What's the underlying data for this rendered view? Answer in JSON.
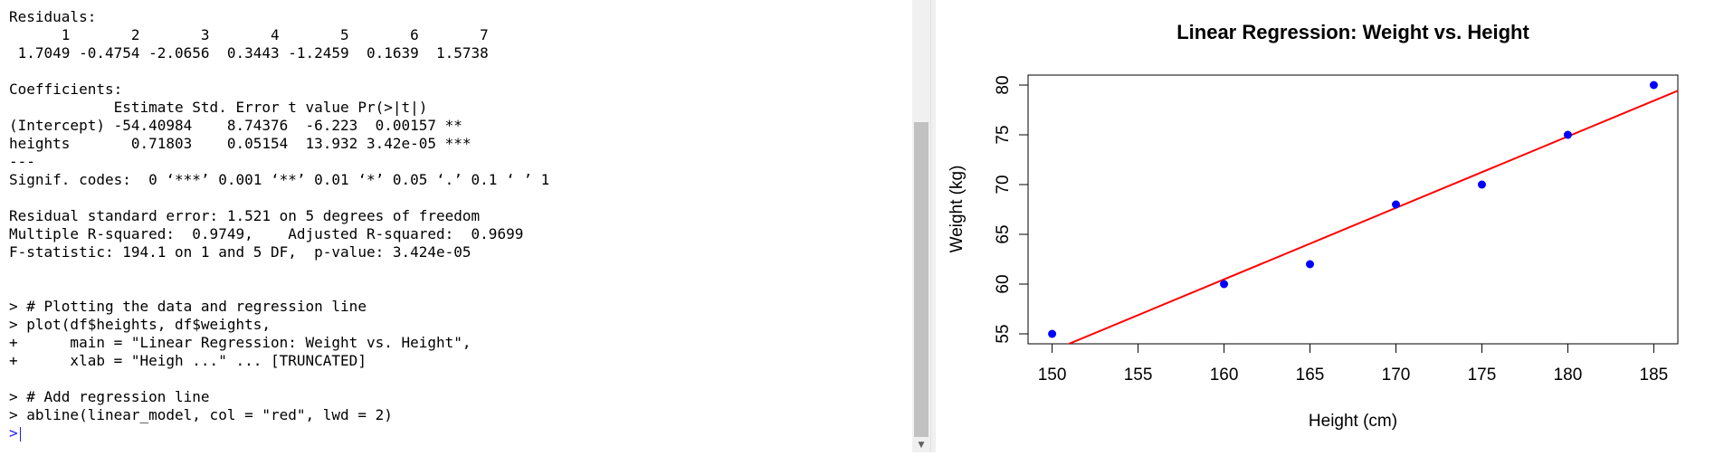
{
  "console": {
    "lines": [
      "Residuals:",
      "      1       2       3       4       5       6       7 ",
      " 1.7049 -0.4754 -2.0656  0.3443 -1.2459  0.1639  1.5738 ",
      "",
      "Coefficients:",
      "            Estimate Std. Error t value Pr(>|t|)    ",
      "(Intercept) -54.40984    8.74376  -6.223  0.00157 ** ",
      "heights       0.71803    0.05154  13.932 3.42e-05 ***",
      "---",
      "Signif. codes:  0 ‘***’ 0.001 ‘**’ 0.01 ‘*’ 0.05 ‘.’ 0.1 ‘ ’ 1",
      "",
      "Residual standard error: 1.521 on 5 degrees of freedom",
      "Multiple R-squared:  0.9749,\tAdjusted R-squared:  0.9699 ",
      "F-statistic: 194.1 on 1 and 5 DF,  p-value: 3.424e-05",
      "",
      "",
      "> # Plotting the data and regression line",
      "> plot(df$heights, df$weights,",
      "+      main = \"Linear Regression: Weight vs. Height\",",
      "+      xlab = \"Heigh ...\" ... [TRUNCATED] ",
      "",
      "> # Add regression line",
      "> abline(linear_model, col = \"red\", lwd = 2)"
    ],
    "prompt": ">"
  },
  "chart_data": {
    "type": "scatter",
    "title": "Linear Regression: Weight vs. Height",
    "xlabel": "Height (cm)",
    "ylabel": "Weight (kg)",
    "x": [
      150,
      160,
      165,
      170,
      175,
      180,
      185
    ],
    "y": [
      55,
      60,
      62,
      68,
      70,
      75,
      80
    ],
    "xlim": [
      148.6,
      186.4
    ],
    "ylim": [
      54.0,
      81.0
    ],
    "xticks": [
      150,
      155,
      160,
      165,
      170,
      175,
      180,
      185
    ],
    "yticks": [
      55,
      60,
      65,
      70,
      75,
      80
    ],
    "point_color": "#0000ff",
    "regression_line": {
      "intercept": -54.40984,
      "slope": 0.71803,
      "color": "#ff0000",
      "lwd": 2
    },
    "grid": false,
    "legend": "none"
  }
}
